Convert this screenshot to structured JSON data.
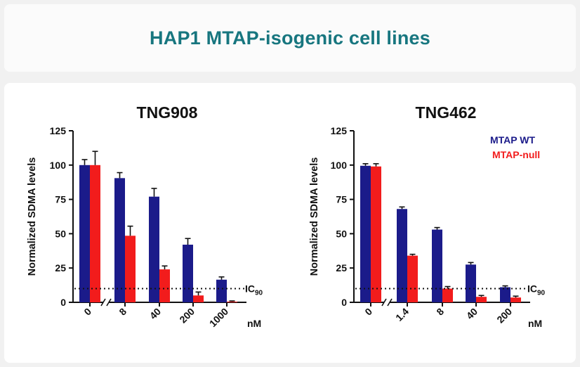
{
  "header": {
    "title": "HAP1 MTAP-isogenic cell lines"
  },
  "legend": {
    "wt": {
      "label": "MTAP WT",
      "color": "#1b1b8a"
    },
    "null": {
      "label": "MTAP-null",
      "color": "#f21c1c"
    }
  },
  "unit_label": "nM",
  "ic_label": "IC",
  "ic_sub": "90",
  "chart_data": [
    {
      "type": "bar",
      "title": "TNG908",
      "ylabel": "Normalized SDMA levels",
      "xlabel": "nM",
      "ylim": [
        0,
        125
      ],
      "yticks": [
        "0",
        "25",
        "50",
        "75",
        "100",
        "125"
      ],
      "categories": [
        "0",
        "8",
        "40",
        "200",
        "1000"
      ],
      "series": [
        {
          "name": "MTAP WT",
          "values": [
            100,
            90.5,
            77,
            42,
            16.5
          ],
          "errors": [
            4,
            4,
            6,
            4.5,
            2
          ]
        },
        {
          "name": "MTAP-null",
          "values": [
            100,
            48.5,
            24,
            5,
            0.5
          ],
          "errors": [
            10,
            7,
            2.5,
            2.5,
            0.5
          ]
        }
      ],
      "ic90": 10
    },
    {
      "type": "bar",
      "title": "TNG462",
      "ylabel": "Normalized SDMA levels",
      "xlabel": "nM",
      "ylim": [
        0,
        125
      ],
      "yticks": [
        "0",
        "25",
        "50",
        "75",
        "100",
        "125"
      ],
      "categories": [
        "0",
        "1.4",
        "8",
        "40",
        "200"
      ],
      "series": [
        {
          "name": "MTAP WT",
          "values": [
            99.5,
            68,
            53,
            27.5,
            11
          ],
          "errors": [
            1.5,
            1.5,
            1.5,
            1.5,
            1
          ]
        },
        {
          "name": "MTAP-null",
          "values": [
            99,
            34,
            10,
            4,
            3.5
          ],
          "errors": [
            2,
            1,
            1.5,
            1,
            1
          ]
        }
      ],
      "ic90": 10
    }
  ]
}
